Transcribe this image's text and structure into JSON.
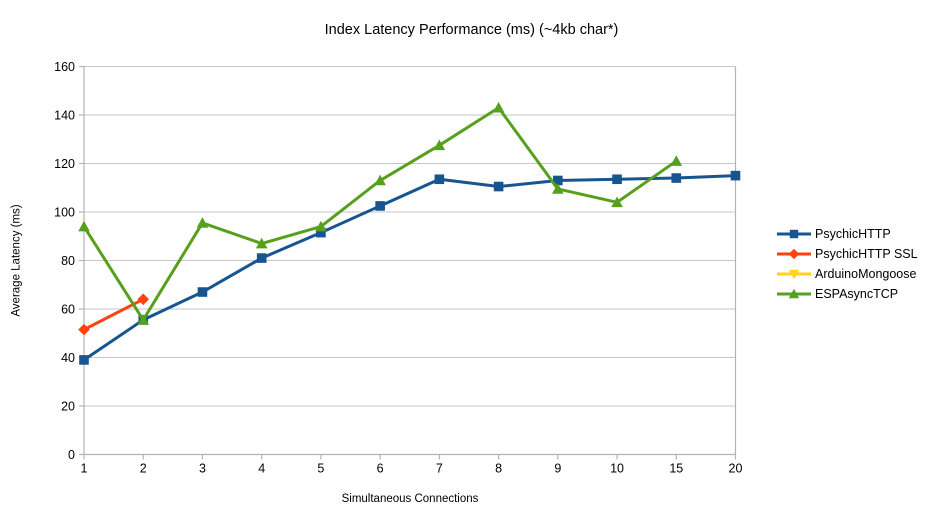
{
  "chart_data": {
    "type": "line",
    "title": "Index Latency Performance (ms) (~4kb char*)",
    "xlabel": "Simultaneous Connections",
    "ylabel": "Average Latency (ms)",
    "categories": [
      "1",
      "2",
      "3",
      "4",
      "5",
      "6",
      "7",
      "8",
      "9",
      "10",
      "15",
      "20"
    ],
    "ylim": [
      0,
      160
    ],
    "ytick_step": 20,
    "grid": true,
    "legend_position": "right",
    "series": [
      {
        "name": "PsychicHTTP",
        "color": "#175591",
        "marker": "square",
        "values": [
          39,
          55.5,
          67,
          81,
          91.5,
          102.5,
          113.5,
          110.5,
          113,
          113.5,
          114,
          115
        ]
      },
      {
        "name": "PsychicHTTP SSL",
        "color": "#FF420E",
        "marker": "diamond",
        "values": [
          51.5,
          64,
          null,
          null,
          null,
          null,
          null,
          null,
          null,
          null,
          null,
          null
        ]
      },
      {
        "name": "ArduinoMongoose",
        "color": "#FFD320",
        "marker": "triangle-down",
        "values": [
          null,
          null,
          null,
          null,
          null,
          null,
          null,
          null,
          null,
          null,
          null,
          null
        ]
      },
      {
        "name": "ESPAsyncTCP",
        "color": "#57A01E",
        "marker": "triangle-up",
        "values": [
          94,
          55.5,
          95.5,
          87,
          94,
          113,
          127.5,
          143,
          109.5,
          104,
          121,
          null
        ]
      }
    ]
  },
  "style": {
    "grid_color": "#C6C6C6",
    "axis_color": "#B3B3B3",
    "text_color": "#000000",
    "background": "#FFFFFF"
  }
}
